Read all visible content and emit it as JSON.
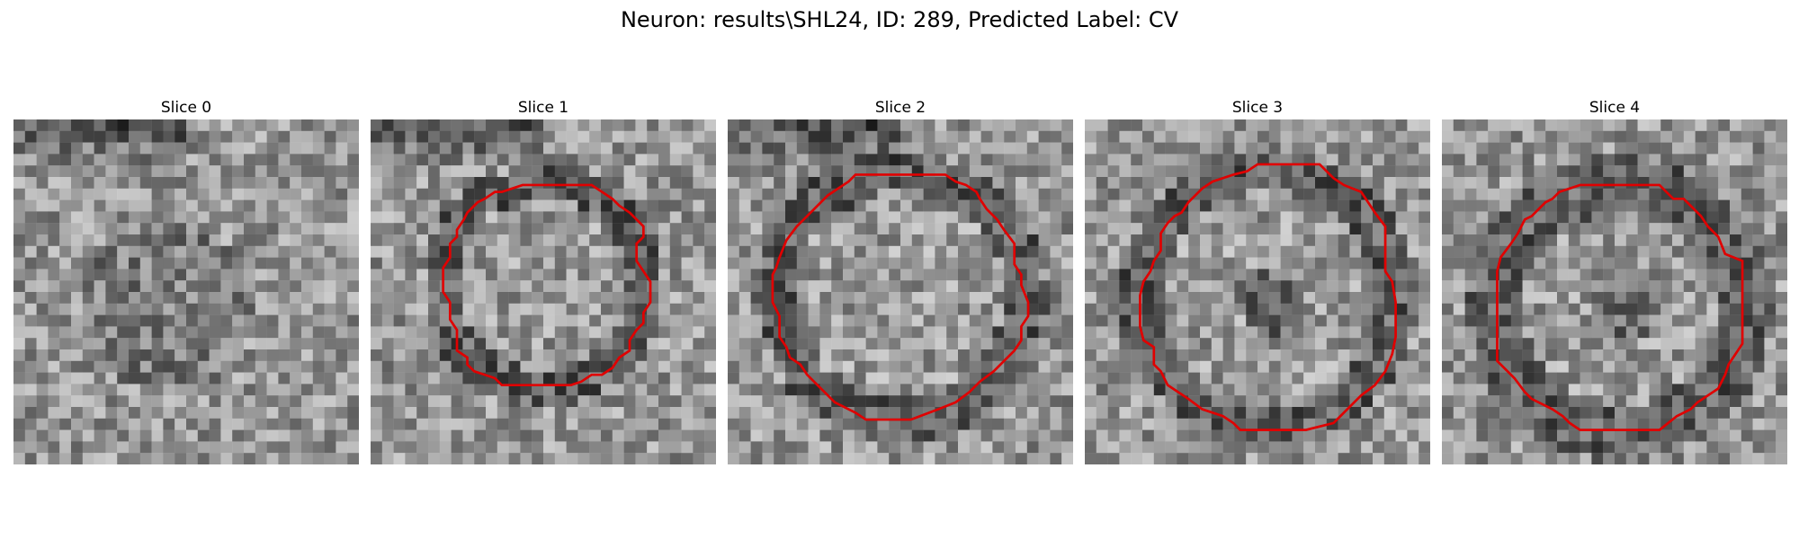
{
  "figure": {
    "title": "Neuron: results\\SHL24, ID: 289, Predicted Label: CV",
    "panels": [
      {
        "title": "Slice 0",
        "has_contour": false
      },
      {
        "title": "Slice 1",
        "has_contour": true
      },
      {
        "title": "Slice 2",
        "has_contour": true
      },
      {
        "title": "Slice 3",
        "has_contour": true
      },
      {
        "title": "Slice 4",
        "has_contour": true
      }
    ],
    "contour_color": "#e00000"
  }
}
